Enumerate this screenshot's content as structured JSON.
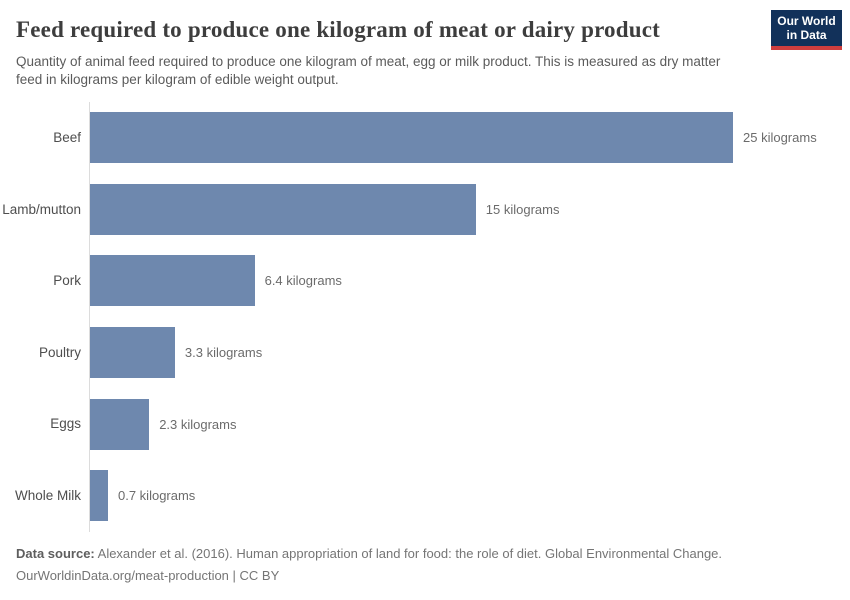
{
  "header": {
    "title": "Feed required to produce one kilogram of meat or dairy product",
    "subtitle": "Quantity of animal feed required to produce one kilogram of meat, egg or milk product. This is measured as dry matter feed in kilograms per kilogram of edible weight output.",
    "logo": {
      "line1": "Our World",
      "line2": "in Data"
    }
  },
  "chart_data": {
    "type": "bar",
    "orientation": "horizontal",
    "title": "Feed required to produce one kilogram of meat or dairy product",
    "xlabel": "",
    "ylabel": "",
    "grid": false,
    "legend": false,
    "xlim": [
      0,
      25
    ],
    "categories": [
      "Beef",
      "Lamb/mutton",
      "Pork",
      "Poultry",
      "Eggs",
      "Whole Milk"
    ],
    "values": [
      25,
      15,
      6.4,
      3.3,
      2.3,
      0.7
    ],
    "value_labels": [
      "25 kilograms",
      "15 kilograms",
      "6.4 kilograms",
      "3.3 kilograms",
      "2.3 kilograms",
      "0.7 kilograms"
    ],
    "unit": "kilograms"
  },
  "footer": {
    "source_label": "Data source:",
    "source_text": " Alexander et al. (2016). Human appropriation of land for food: the role of diet. Global Environmental Change.",
    "license_line": "OurWorldinData.org/meat-production | CC BY"
  },
  "colors": {
    "bar": "#6e88ae",
    "axis_line": "#dcdcdc",
    "title_text": "#3d3d3d",
    "subtitle_text": "#5b5b5b",
    "category_text": "#4e4e4e",
    "value_text": "#6b6b6b",
    "footer_text": "#757575",
    "logo_background": "#12315a",
    "logo_accent_red": "#cf3e3e"
  }
}
